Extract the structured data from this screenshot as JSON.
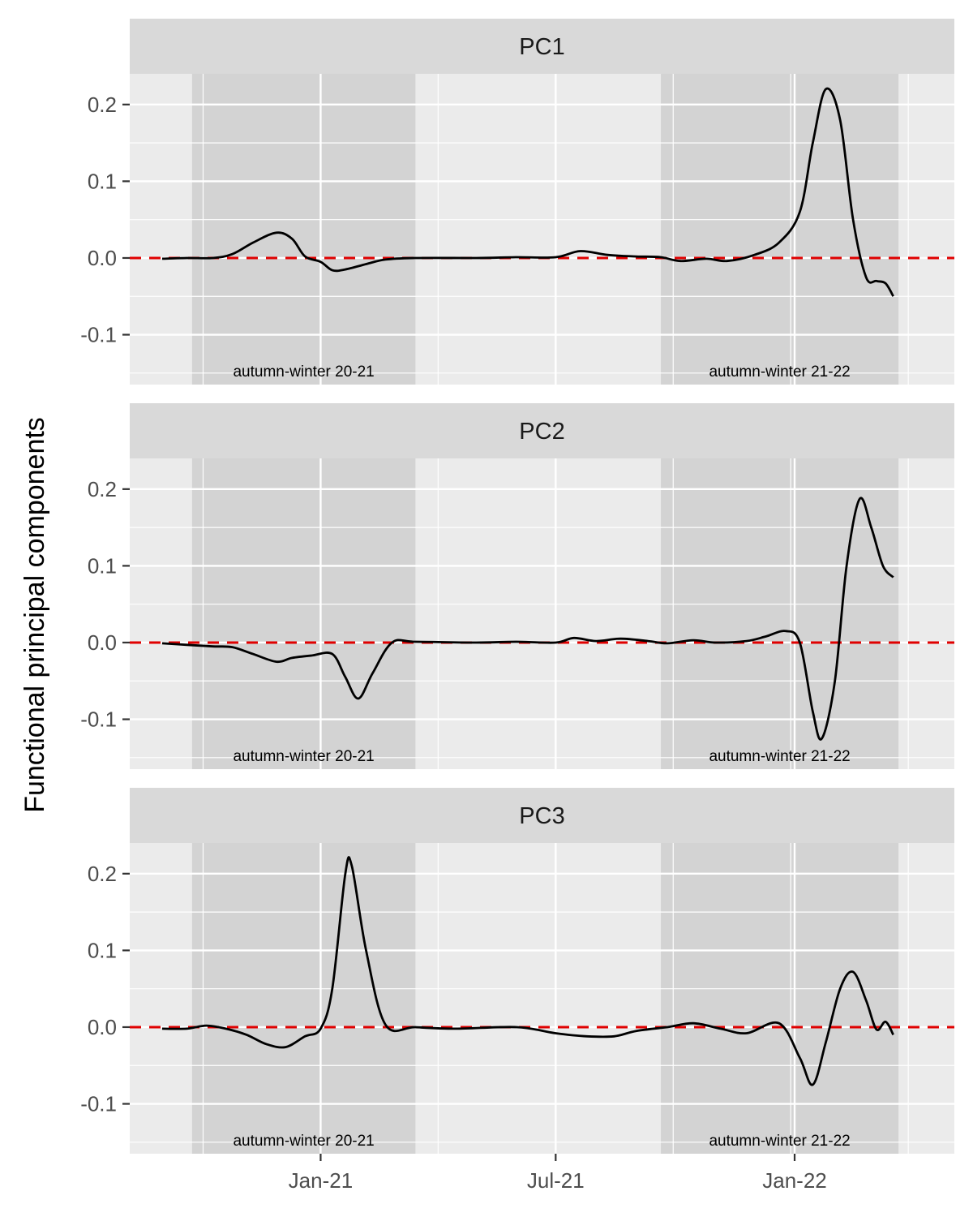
{
  "chart_data": {
    "type": "line",
    "ylabel": "Functional principal components",
    "xlabel": "",
    "x_ticks": [
      {
        "date": "2021-01-01",
        "label": "Jan-21"
      },
      {
        "date": "2021-07-01",
        "label": "Jul-21"
      },
      {
        "date": "2022-01-01",
        "label": "Jan-22"
      }
    ],
    "y_ticks": [
      -0.1,
      0.0,
      0.1,
      0.2
    ],
    "ylim": [
      -0.165,
      0.24
    ],
    "xlim": [
      "2020-08-07",
      "2022-05-04"
    ],
    "grid": true,
    "zero_line_color": "#e00000",
    "line_color": "#000000",
    "shaded_periods": [
      {
        "label": "autumn-winter 20-21",
        "start": "2020-09-24",
        "end": "2021-03-15"
      },
      {
        "label": "autumn-winter 21-22",
        "start": "2021-09-20",
        "end": "2022-03-22"
      }
    ],
    "panels": [
      {
        "title": "PC1",
        "points": [
          [
            "2020-09-01",
            -0.001
          ],
          [
            "2020-09-20",
            0.0
          ],
          [
            "2020-10-10",
            0.0
          ],
          [
            "2020-10-25",
            0.005
          ],
          [
            "2020-11-10",
            0.02
          ],
          [
            "2020-11-28",
            0.033
          ],
          [
            "2020-12-10",
            0.025
          ],
          [
            "2020-12-20",
            0.002
          ],
          [
            "2021-01-01",
            -0.005
          ],
          [
            "2021-01-10",
            -0.016
          ],
          [
            "2021-01-20",
            -0.015
          ],
          [
            "2021-02-05",
            -0.008
          ],
          [
            "2021-02-20",
            -0.002
          ],
          [
            "2021-03-15",
            0.0
          ],
          [
            "2021-05-01",
            0.0
          ],
          [
            "2021-06-01",
            0.001
          ],
          [
            "2021-07-01",
            0.001
          ],
          [
            "2021-07-20",
            0.009
          ],
          [
            "2021-08-10",
            0.004
          ],
          [
            "2021-09-01",
            0.002
          ],
          [
            "2021-09-20",
            0.001
          ],
          [
            "2021-10-05",
            -0.004
          ],
          [
            "2021-10-25",
            -0.001
          ],
          [
            "2021-11-10",
            -0.004
          ],
          [
            "2021-12-01",
            0.004
          ],
          [
            "2021-12-20",
            0.02
          ],
          [
            "2022-01-05",
            0.06
          ],
          [
            "2022-01-15",
            0.15
          ],
          [
            "2022-01-25",
            0.22
          ],
          [
            "2022-02-05",
            0.18
          ],
          [
            "2022-02-15",
            0.05
          ],
          [
            "2022-02-25",
            -0.025
          ],
          [
            "2022-03-05",
            -0.03
          ],
          [
            "2022-03-12",
            -0.033
          ],
          [
            "2022-03-18",
            -0.05
          ]
        ]
      },
      {
        "title": "PC2",
        "points": [
          [
            "2020-09-01",
            -0.001
          ],
          [
            "2020-09-20",
            -0.003
          ],
          [
            "2020-10-10",
            -0.005
          ],
          [
            "2020-10-25",
            -0.006
          ],
          [
            "2020-11-10",
            -0.015
          ],
          [
            "2020-11-28",
            -0.025
          ],
          [
            "2020-12-10",
            -0.02
          ],
          [
            "2020-12-25",
            -0.017
          ],
          [
            "2021-01-10",
            -0.015
          ],
          [
            "2021-01-20",
            -0.045
          ],
          [
            "2021-01-30",
            -0.073
          ],
          [
            "2021-02-10",
            -0.04
          ],
          [
            "2021-02-25",
            0.0
          ],
          [
            "2021-03-15",
            0.001
          ],
          [
            "2021-05-01",
            0.0
          ],
          [
            "2021-06-01",
            0.001
          ],
          [
            "2021-07-01",
            0.0
          ],
          [
            "2021-07-15",
            0.006
          ],
          [
            "2021-08-01",
            0.002
          ],
          [
            "2021-08-20",
            0.005
          ],
          [
            "2021-09-10",
            0.002
          ],
          [
            "2021-09-25",
            -0.001
          ],
          [
            "2021-10-15",
            0.003
          ],
          [
            "2021-11-01",
            0.0
          ],
          [
            "2021-11-25",
            0.002
          ],
          [
            "2021-12-10",
            0.008
          ],
          [
            "2021-12-25",
            0.015
          ],
          [
            "2022-01-05",
            0.0
          ],
          [
            "2022-01-15",
            -0.09
          ],
          [
            "2022-01-22",
            -0.125
          ],
          [
            "2022-02-01",
            -0.05
          ],
          [
            "2022-02-10",
            0.1
          ],
          [
            "2022-02-20",
            0.187
          ],
          [
            "2022-03-01",
            0.15
          ],
          [
            "2022-03-10",
            0.1
          ],
          [
            "2022-03-18",
            0.085
          ]
        ]
      },
      {
        "title": "PC3",
        "points": [
          [
            "2020-09-01",
            -0.002
          ],
          [
            "2020-09-20",
            -0.002
          ],
          [
            "2020-10-05",
            0.002
          ],
          [
            "2020-10-20",
            -0.002
          ],
          [
            "2020-11-05",
            -0.01
          ],
          [
            "2020-11-20",
            -0.022
          ],
          [
            "2020-12-05",
            -0.026
          ],
          [
            "2020-12-20",
            -0.012
          ],
          [
            "2021-01-01",
            -0.002
          ],
          [
            "2021-01-10",
            0.05
          ],
          [
            "2021-01-20",
            0.2
          ],
          [
            "2021-01-25",
            0.21
          ],
          [
            "2021-02-05",
            0.1
          ],
          [
            "2021-02-20",
            0.003
          ],
          [
            "2021-03-15",
            0.0
          ],
          [
            "2021-04-15",
            -0.002
          ],
          [
            "2021-06-01",
            0.0
          ],
          [
            "2021-07-01",
            -0.008
          ],
          [
            "2021-07-25",
            -0.012
          ],
          [
            "2021-08-15",
            -0.012
          ],
          [
            "2021-09-01",
            -0.005
          ],
          [
            "2021-09-25",
            0.0
          ],
          [
            "2021-10-15",
            0.005
          ],
          [
            "2021-11-05",
            -0.002
          ],
          [
            "2021-11-25",
            -0.008
          ],
          [
            "2021-12-20",
            0.005
          ],
          [
            "2022-01-05",
            -0.04
          ],
          [
            "2022-01-15",
            -0.075
          ],
          [
            "2022-01-25",
            -0.02
          ],
          [
            "2022-02-05",
            0.05
          ],
          [
            "2022-02-15",
            0.072
          ],
          [
            "2022-02-25",
            0.035
          ],
          [
            "2022-03-05",
            -0.003
          ],
          [
            "2022-03-12",
            0.007
          ],
          [
            "2022-03-18",
            -0.01
          ]
        ]
      }
    ]
  }
}
